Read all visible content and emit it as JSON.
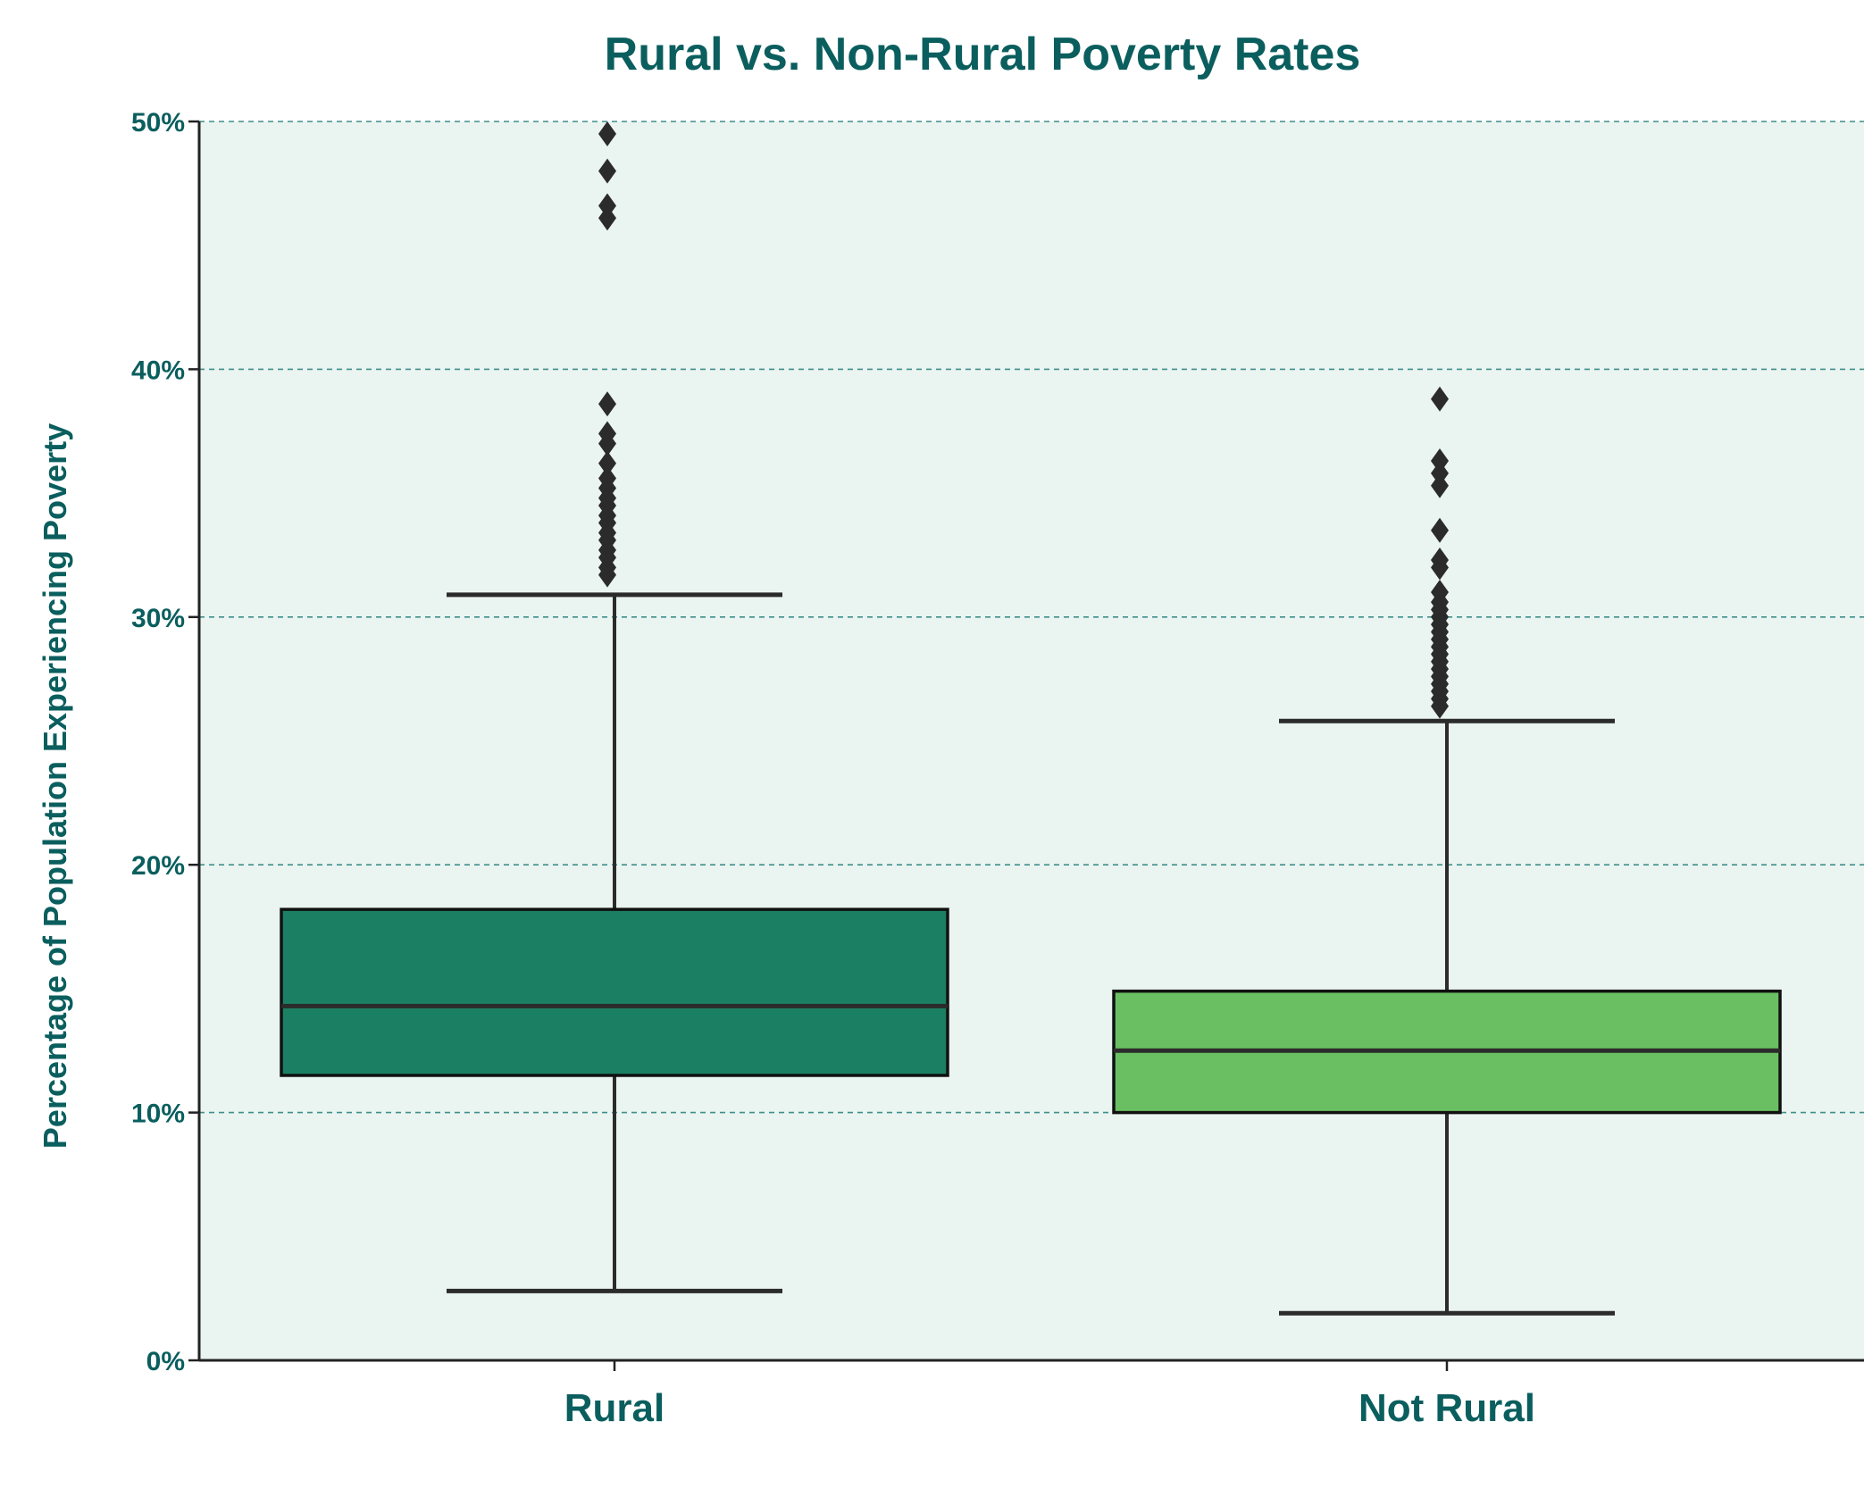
{
  "colors": {
    "text": "#0b5e5e",
    "plot_background": "#eaf4f0",
    "grid": "#3f8f8c",
    "axis": "#222222",
    "box_edge": "#111111",
    "whisker": "#2b2b2b",
    "rural_box": "#1b8063",
    "not_rural_box": "#6abf63",
    "outlier": "#2b2b2b"
  },
  "chart_data": {
    "type": "box",
    "title": "Rural vs. Non-Rural Poverty Rates",
    "xlabel": "",
    "ylabel": "Percentage of Population Experiencing Poverty",
    "ylim": [
      0,
      50
    ],
    "yticks": [
      0,
      10,
      20,
      30,
      40,
      50
    ],
    "ytick_labels": [
      "0%",
      "10%",
      "20%",
      "30%",
      "40%",
      "50%"
    ],
    "grid": "horizontal dashed",
    "categories": [
      "Rural",
      "Not Rural"
    ],
    "series": [
      {
        "category": "Rural",
        "whisker_low": 2.8,
        "q1": 11.5,
        "median": 14.3,
        "q3": 18.2,
        "whisker_high": 30.9,
        "outliers": [
          31.7,
          32.0,
          32.4,
          32.7,
          33.1,
          33.4,
          33.8,
          34.1,
          34.5,
          34.8,
          35.2,
          35.6,
          36.2,
          37.0,
          37.4,
          38.6,
          46.1,
          46.6,
          48.0,
          49.5
        ]
      },
      {
        "category": "Not Rural",
        "whisker_low": 1.9,
        "q1": 10.0,
        "median": 12.5,
        "q3": 14.9,
        "whisker_high": 25.8,
        "outliers": [
          26.4,
          26.7,
          27.0,
          27.3,
          27.6,
          27.9,
          28.2,
          28.5,
          28.8,
          29.1,
          29.4,
          29.7,
          30.0,
          30.3,
          30.6,
          31.0,
          32.0,
          32.3,
          33.5,
          35.3,
          35.8,
          36.3,
          38.8
        ]
      }
    ]
  }
}
